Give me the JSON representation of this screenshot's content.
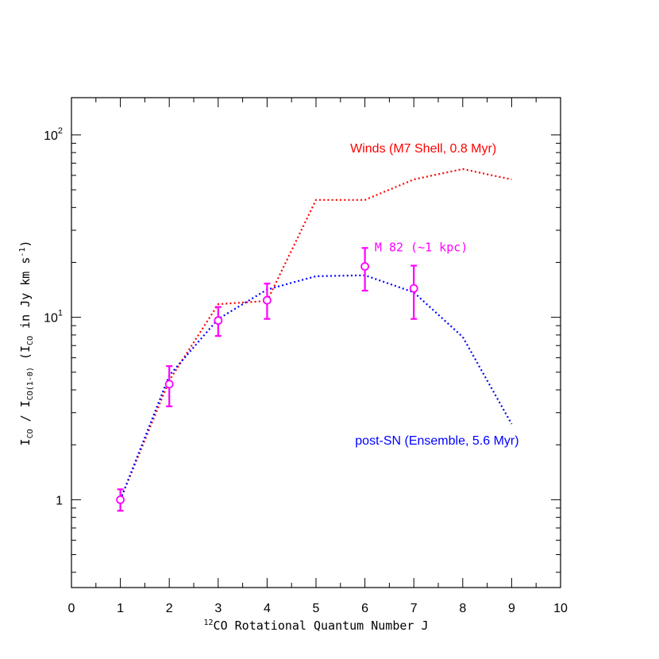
{
  "chart_data": {
    "type": "line",
    "xlabel": {
      "sup": "12",
      "main": "CO Rotational Quantum Number J"
    },
    "ylabel": {
      "p1": "I",
      "p1sub": "CO",
      "p2": " / I",
      "p2sub": "CO(1-0)",
      "p3": " (I",
      "p3sub": "CO",
      "p4": " in Jy km s",
      "p4sup": "-1",
      "p5": ")"
    },
    "xlim": [
      0,
      10
    ],
    "ylim": [
      0.33,
      160
    ],
    "yscale": "log",
    "x_ticks": [
      "0",
      "1",
      "2",
      "3",
      "4",
      "5",
      "6",
      "7",
      "8",
      "9",
      "10"
    ],
    "y_ticks": [
      {
        "value": 1,
        "base": "1",
        "exp": ""
      },
      {
        "value": 10,
        "base": "10",
        "exp": "1"
      },
      {
        "value": 100,
        "base": "10",
        "exp": "2"
      }
    ],
    "series": [
      {
        "name": "Winds (M7 Shell, 0.8 Myr)",
        "color": "#ff0000",
        "style": "dotted",
        "x": [
          1,
          2,
          3,
          4,
          5,
          6,
          7,
          8,
          9
        ],
        "y": [
          1.0,
          4.5,
          11.8,
          12.3,
          44,
          44,
          57,
          65,
          57
        ]
      },
      {
        "name": "post-SN (Ensemble, 5.6 Myr)",
        "color": "#0000ff",
        "style": "dotted",
        "x": [
          1,
          2,
          3,
          4,
          5,
          6,
          7,
          8,
          9
        ],
        "y": [
          1.0,
          4.8,
          9.8,
          14.2,
          16.8,
          17,
          13.7,
          7.8,
          2.6
        ]
      },
      {
        "name": "M 82 (~1 kpc)",
        "color": "#ff00ff",
        "style": "errorbar",
        "x": [
          1,
          2,
          3,
          4,
          6,
          7
        ],
        "y": [
          1.0,
          4.3,
          9.6,
          12.4,
          19.0,
          14.4
        ],
        "yerr_low": [
          0.87,
          3.25,
          7.9,
          9.8,
          14.0,
          9.8
        ],
        "yerr_high": [
          1.14,
          5.4,
          11.4,
          15.3,
          24.0,
          19.2
        ]
      }
    ],
    "annotations": [
      {
        "text": "Winds (M7 Shell, 0.8 Myr)",
        "color": "#ff0000",
        "x": 5.7,
        "y": 80,
        "font": "sans"
      },
      {
        "text": "M 82 (~1 kpc)",
        "color": "#ff00ff",
        "x": 6.2,
        "y": 23,
        "font": "mono"
      },
      {
        "text": "post-SN (Ensemble, 5.6 Myr)",
        "color": "#0000ff",
        "x": 5.8,
        "y": 2.0,
        "font": "sans"
      }
    ],
    "grid": false,
    "legend": "none"
  }
}
